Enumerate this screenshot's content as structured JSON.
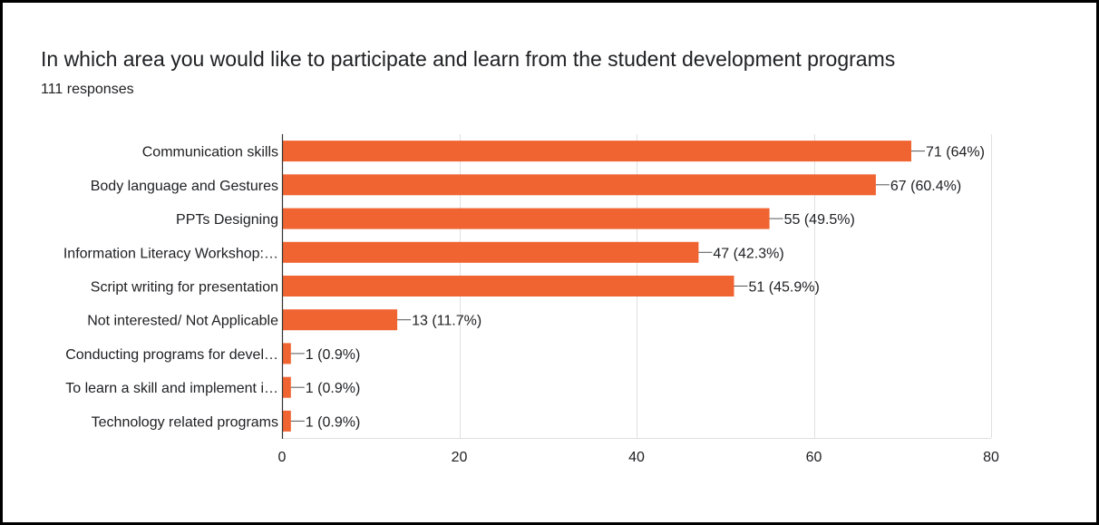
{
  "title": "In which area you would like to participate and learn from the student development programs",
  "responses": "111 responses",
  "chart_data": {
    "type": "bar",
    "orientation": "horizontal",
    "categories": [
      "Communication skills",
      "Body language and Gestures",
      "PPTs Designing",
      "Information Literacy Workshop:…",
      "Script writing for presentation",
      "Not interested/ Not Applicable",
      "Conducting programs for devel…",
      "To learn a skill and implement i…",
      "Technology related programs"
    ],
    "values": [
      71,
      67,
      55,
      47,
      51,
      13,
      1,
      1,
      1
    ],
    "data_labels": [
      "71 (64%)",
      "67 (60.4%)",
      "55 (49.5%)",
      "47 (42.3%)",
      "51 (45.9%)",
      "13 (11.7%)",
      "1 (0.9%)",
      "1 (0.9%)",
      "1 (0.9%)"
    ],
    "xlim": [
      0,
      80
    ],
    "xticks": [
      0,
      20,
      40,
      60,
      80
    ],
    "grid": true,
    "bar_color": "#f06432"
  }
}
